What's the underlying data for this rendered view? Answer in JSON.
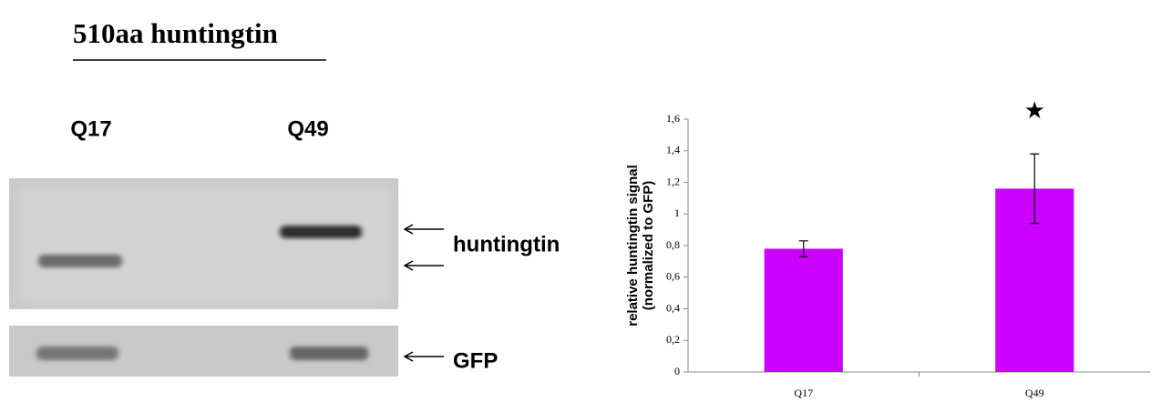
{
  "blot": {
    "title": "510aa huntingtin",
    "lanes": [
      "Q17",
      "Q49"
    ],
    "labels": [
      "huntingtin",
      "GFP"
    ]
  },
  "chart_data": {
    "type": "bar",
    "ylabel": [
      "relative huntingtin signal",
      "(normalized to GFP)"
    ],
    "categories": [
      "Q17",
      "Q49"
    ],
    "values": [
      0.78,
      1.16
    ],
    "errors": [
      0.05,
      0.22
    ],
    "color": "#cc00ff",
    "ylim": [
      0,
      1.6
    ],
    "yticks": [
      0,
      {
        "value": 0.2,
        "label": "0,2"
      },
      {
        "value": 0.4,
        "label": "0,4"
      },
      {
        "value": 0.6,
        "label": "0,6"
      },
      {
        "value": 0.8,
        "label": "0,8"
      },
      1,
      {
        "value": 1.2,
        "label": "1,2"
      },
      {
        "value": 1.4,
        "label": "1,4"
      },
      {
        "value": 1.6,
        "label": "1,6"
      }
    ],
    "annotations": [
      {
        "text": "★",
        "x": "Q49"
      }
    ]
  }
}
